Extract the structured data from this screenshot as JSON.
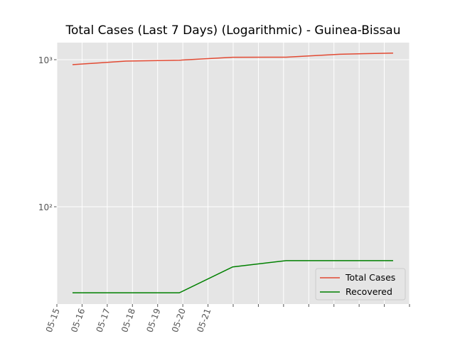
{
  "chart_data": {
    "type": "line",
    "title": "Total Cases (Last 7 Days) (Logarithmic) - Guinea-Bissau",
    "x": [
      0.62,
      2.74,
      4.86,
      6.98,
      9.1,
      11.22,
      13.35
    ],
    "series": [
      {
        "name": "Total Cases",
        "color": "#e24a33",
        "values": [
          925,
          978,
          992,
          1038,
          1040,
          1089,
          1109
        ]
      },
      {
        "name": "Recovered",
        "color": "#008000",
        "values": [
          26,
          26,
          26,
          39,
          43,
          43,
          43
        ]
      }
    ],
    "xlim": [
      0,
      14
    ],
    "xticks": [
      {
        "value": 0,
        "label": "05-15"
      },
      {
        "value": 1,
        "label": "05-16"
      },
      {
        "value": 2,
        "label": "05-17"
      },
      {
        "value": 3,
        "label": "05-18"
      },
      {
        "value": 4,
        "label": "05-19"
      },
      {
        "value": 5,
        "label": "05-20"
      },
      {
        "value": 6,
        "label": "05-21"
      },
      {
        "value": 7,
        "label": null
      },
      {
        "value": 8,
        "label": null
      },
      {
        "value": 9,
        "label": null
      },
      {
        "value": 10,
        "label": null
      },
      {
        "value": 11,
        "label": null
      },
      {
        "value": 12,
        "label": null
      },
      {
        "value": 13,
        "label": null
      },
      {
        "value": 14,
        "label": null
      }
    ],
    "ylim": [
      21.8,
      1306
    ],
    "yticks": [
      {
        "value": 100,
        "label": "10²"
      },
      {
        "value": 1000,
        "label": "10³"
      }
    ],
    "yscale": "log",
    "grid": true,
    "legend": "lower right"
  }
}
